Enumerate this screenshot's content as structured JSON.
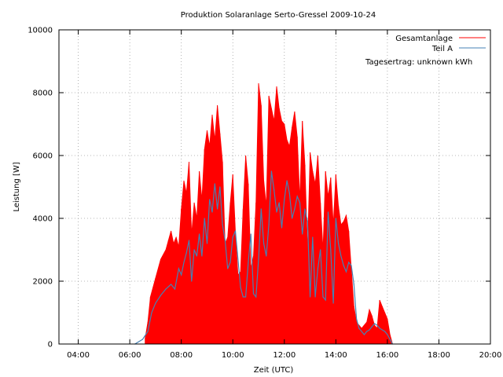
{
  "chart_data": {
    "type": "area",
    "title": "Produktion Solaranlage Serto-Gressel 2009-10-24",
    "xlabel": "Zeit (UTC)",
    "ylabel": "Leistung [W]",
    "x_unit": "hours UTC",
    "xlim": [
      3.25,
      20.0
    ],
    "ylim": [
      0,
      10000
    ],
    "x_tick_labels": [
      "04:00",
      "06:00",
      "08:00",
      "10:00",
      "12:00",
      "14:00",
      "16:00",
      "18:00",
      "20:00"
    ],
    "x_tick_values": [
      4,
      6,
      8,
      10,
      12,
      14,
      16,
      18,
      20
    ],
    "y_ticks": [
      0,
      2000,
      4000,
      6000,
      8000,
      10000
    ],
    "grid": true,
    "legend_position": "top-right",
    "annotation": "Tagesertrag: unknown kWh",
    "series": [
      {
        "name": "Gesamtanlage",
        "color": "#ff0000",
        "style": "filled-impulses",
        "x": [
          6.6,
          6.7,
          6.8,
          7.0,
          7.2,
          7.4,
          7.5,
          7.6,
          7.7,
          7.8,
          7.9,
          8.0,
          8.1,
          8.2,
          8.3,
          8.4,
          8.5,
          8.6,
          8.7,
          8.8,
          8.9,
          9.0,
          9.1,
          9.2,
          9.3,
          9.4,
          9.5,
          9.6,
          9.7,
          9.8,
          9.9,
          10.0,
          10.1,
          10.2,
          10.3,
          10.4,
          10.5,
          10.6,
          10.7,
          10.8,
          10.9,
          11.0,
          11.1,
          11.2,
          11.3,
          11.4,
          11.5,
          11.6,
          11.7,
          11.8,
          11.9,
          12.0,
          12.1,
          12.2,
          12.3,
          12.4,
          12.5,
          12.6,
          12.7,
          12.8,
          12.9,
          13.0,
          13.1,
          13.2,
          13.3,
          13.4,
          13.5,
          13.6,
          13.7,
          13.8,
          13.9,
          14.0,
          14.1,
          14.2,
          14.3,
          14.4,
          14.5,
          14.6,
          14.7,
          14.8,
          14.9,
          15.0,
          15.1,
          15.2,
          15.3,
          15.4,
          15.5,
          15.6,
          15.7,
          15.8,
          15.9,
          16.0,
          16.1,
          16.2
        ],
        "values": [
          200,
          700,
          1500,
          2100,
          2700,
          3000,
          3300,
          3600,
          3200,
          3400,
          3100,
          4300,
          5200,
          4800,
          5800,
          3500,
          4500,
          4000,
          5500,
          4600,
          6200,
          6800,
          6300,
          7300,
          6500,
          7600,
          6700,
          5800,
          3200,
          3400,
          4500,
          5400,
          3600,
          2200,
          2300,
          4300,
          6000,
          5100,
          2400,
          2800,
          4500,
          8300,
          7600,
          5200,
          4400,
          7900,
          7500,
          7100,
          8200,
          7500,
          7100,
          7000,
          6500,
          6300,
          6900,
          7400,
          6600,
          4600,
          7100,
          5700,
          3000,
          6100,
          5500,
          5100,
          6000,
          4500,
          3000,
          5500,
          4700,
          5300,
          3800,
          5400,
          4400,
          3800,
          3900,
          4100,
          3600,
          2400,
          1200,
          700,
          600,
          500,
          600,
          700,
          1100,
          900,
          600,
          500,
          1400,
          1200,
          1000,
          800,
          300,
          0
        ]
      },
      {
        "name": "Teil A",
        "color": "#4682b4",
        "style": "line",
        "x": [
          6.2,
          6.5,
          6.7,
          6.85,
          7.0,
          7.2,
          7.4,
          7.6,
          7.75,
          7.9,
          8.0,
          8.1,
          8.2,
          8.3,
          8.4,
          8.5,
          8.6,
          8.7,
          8.8,
          8.9,
          9.0,
          9.1,
          9.2,
          9.3,
          9.4,
          9.5,
          9.6,
          9.7,
          9.8,
          9.9,
          10.0,
          10.1,
          10.2,
          10.3,
          10.4,
          10.5,
          10.6,
          10.7,
          10.8,
          10.9,
          11.0,
          11.1,
          11.2,
          11.3,
          11.4,
          11.5,
          11.6,
          11.7,
          11.8,
          11.9,
          12.0,
          12.1,
          12.2,
          12.3,
          12.4,
          12.5,
          12.6,
          12.7,
          12.8,
          12.9,
          13.0,
          13.1,
          13.2,
          13.3,
          13.4,
          13.5,
          13.6,
          13.7,
          13.8,
          13.9,
          14.0,
          14.1,
          14.2,
          14.3,
          14.4,
          14.5,
          14.6,
          14.7,
          14.8,
          14.9,
          15.0,
          15.1,
          15.2,
          15.3,
          15.4,
          15.5,
          15.6,
          15.7,
          15.8,
          15.9,
          16.0,
          16.2
        ],
        "values": [
          0,
          150,
          400,
          1000,
          1300,
          1550,
          1750,
          1900,
          1750,
          2400,
          2200,
          2600,
          2900,
          3300,
          2000,
          3000,
          2800,
          3500,
          2800,
          4000,
          3200,
          4600,
          4200,
          5100,
          4300,
          5000,
          3800,
          3300,
          2400,
          2600,
          3400,
          3600,
          2700,
          1800,
          1500,
          1500,
          2600,
          3500,
          1600,
          1500,
          2700,
          4300,
          3200,
          2800,
          3800,
          5500,
          4900,
          4200,
          4500,
          3700,
          4600,
          5200,
          4800,
          4000,
          4300,
          4700,
          4500,
          3500,
          4300,
          3900,
          1500,
          3400,
          1500,
          2400,
          3000,
          1500,
          1400,
          4200,
          3000,
          1300,
          4000,
          3200,
          2800,
          2500,
          2300,
          2600,
          2500,
          1900,
          800,
          500,
          400,
          300,
          400,
          450,
          550,
          650,
          600,
          500,
          450,
          400,
          300,
          0
        ]
      }
    ]
  }
}
